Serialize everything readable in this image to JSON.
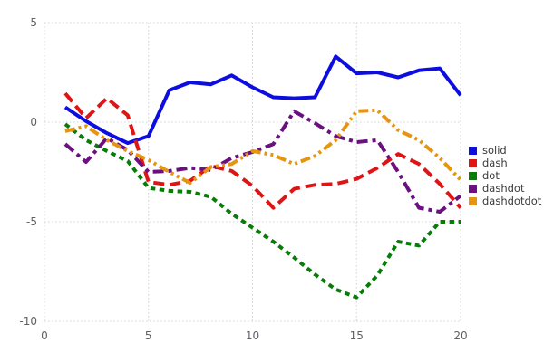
{
  "chart_data": {
    "type": "line",
    "title": "",
    "xlabel": "",
    "ylabel": "",
    "x": [
      1,
      2,
      3,
      4,
      5,
      6,
      7,
      8,
      9,
      10,
      11,
      12,
      13,
      14,
      15,
      16,
      17,
      18,
      19,
      20
    ],
    "series": [
      {
        "name": "solid",
        "color": "#0d0de0",
        "dash": "solid",
        "values": [
          0.75,
          0.05,
          -0.55,
          -1.05,
          -0.7,
          1.6,
          2.0,
          1.9,
          2.35,
          1.75,
          1.25,
          1.2,
          1.25,
          3.3,
          2.45,
          2.5,
          2.25,
          2.6,
          2.7,
          1.35
        ]
      },
      {
        "name": "dash",
        "color": "#df1414",
        "dash": "dash",
        "values": [
          1.45,
          0.2,
          1.2,
          0.35,
          -3.0,
          -3.15,
          -2.95,
          -2.2,
          -2.45,
          -3.2,
          -4.3,
          -3.35,
          -3.15,
          -3.1,
          -2.85,
          -2.3,
          -1.6,
          -2.1,
          -3.1,
          -4.3
        ]
      },
      {
        "name": "dot",
        "color": "#077c07",
        "dash": "dot",
        "values": [
          -0.1,
          -0.9,
          -1.45,
          -1.95,
          -3.3,
          -3.45,
          -3.5,
          -3.75,
          -4.6,
          -5.3,
          -6.0,
          -6.8,
          -7.65,
          -8.4,
          -8.8,
          -7.7,
          -6.0,
          -6.2,
          -5.0,
          -5.0
        ]
      },
      {
        "name": "dashdot",
        "color": "#6b1080",
        "dash": "dashdot",
        "values": [
          -1.1,
          -2.0,
          -0.8,
          -1.4,
          -2.5,
          -2.45,
          -2.3,
          -2.4,
          -1.8,
          -1.5,
          -1.1,
          0.55,
          -0.05,
          -0.7,
          -1.0,
          -0.9,
          -2.5,
          -4.3,
          -4.5,
          -3.7
        ]
      },
      {
        "name": "dashdotdot",
        "color": "#e59611",
        "dash": "dashdotdot",
        "values": [
          -0.45,
          -0.2,
          -0.9,
          -1.45,
          -1.9,
          -2.5,
          -3.05,
          -2.25,
          -2.1,
          -1.45,
          -1.65,
          -2.1,
          -1.7,
          -0.9,
          0.55,
          0.6,
          -0.4,
          -0.9,
          -1.8,
          -2.9
        ]
      }
    ],
    "x_ticks": [
      0,
      5,
      10,
      15,
      20
    ],
    "y_ticks": [
      5,
      0,
      -5,
      -10
    ],
    "xlim": [
      0,
      20
    ],
    "ylim": [
      -10,
      5
    ],
    "grid": true,
    "grid_style": "dotted",
    "grid_color": "#cdd0dd",
    "tick_label_color": "#5f5f66",
    "background_color": "#ffffff",
    "legend_position": "right",
    "legend": [
      {
        "label": "solid",
        "color": "#0d0de0"
      },
      {
        "label": "dash",
        "color": "#df1414"
      },
      {
        "label": "dot",
        "color": "#077c07"
      },
      {
        "label": "dashdot",
        "color": "#6b1080"
      },
      {
        "label": "dashdotdot",
        "color": "#e59611"
      }
    ]
  }
}
